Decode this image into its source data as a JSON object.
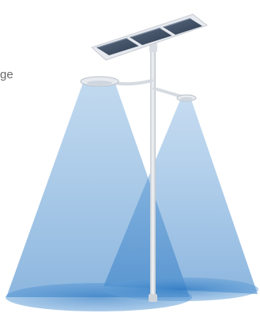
{
  "label_fragment": "ge",
  "colors": {
    "beam_fill": "#2d7fc7",
    "ground_pool": "#1f6fba",
    "pole": "#d9dde3",
    "panel": "#46556a",
    "panel_frame": "#e6e9ee",
    "text": "#6a6a6a",
    "background": "#ffffff"
  },
  "icons": {
    "solar_panel": "solar-panel-icon",
    "lamp_head": "lamp-head-icon",
    "pole": "street-pole-icon"
  }
}
